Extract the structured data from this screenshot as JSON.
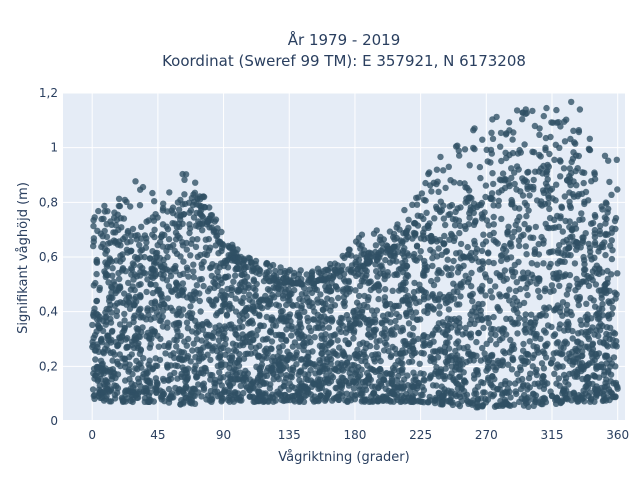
{
  "chart_data": {
    "type": "scatter",
    "title": [
      "År 1979 - 2019",
      "Koordinat (Sweref 99 TM): E 357921, N 6173208"
    ],
    "xlabel": "Vågriktning (grader)",
    "ylabel": "Signifikant våghöjd (m)",
    "xlim": [
      -20,
      365
    ],
    "ylim": [
      0,
      1.2
    ],
    "xticks": [
      0,
      45,
      90,
      135,
      180,
      225,
      270,
      315,
      360
    ],
    "xtick_labels": [
      "0",
      "45",
      "90",
      "135",
      "180",
      "225",
      "270",
      "315",
      "360"
    ],
    "yticks": [
      0,
      0.2,
      0.4,
      0.6,
      0.8,
      1,
      1.2
    ],
    "ytick_labels": [
      "0",
      "0,2",
      "0,4",
      "0,6",
      "0,8",
      "1",
      "1,2"
    ],
    "grid": true,
    "marker_color": "#2f5064",
    "envelope": {
      "x": [
        0,
        15,
        30,
        45,
        60,
        70,
        80,
        90,
        105,
        120,
        135,
        150,
        165,
        180,
        195,
        210,
        225,
        240,
        255,
        270,
        285,
        300,
        315,
        330,
        345,
        360
      ],
      "y_min": [
        0.08,
        0.07,
        0.07,
        0.07,
        0.06,
        0.06,
        0.07,
        0.07,
        0.07,
        0.07,
        0.07,
        0.07,
        0.07,
        0.07,
        0.07,
        0.07,
        0.07,
        0.06,
        0.05,
        0.05,
        0.05,
        0.05,
        0.06,
        0.07,
        0.07,
        0.08
      ],
      "y_core": [
        0.62,
        0.66,
        0.64,
        0.66,
        0.74,
        0.78,
        0.72,
        0.62,
        0.56,
        0.52,
        0.5,
        0.5,
        0.52,
        0.55,
        0.6,
        0.64,
        0.7,
        0.74,
        0.76,
        0.8,
        0.86,
        0.9,
        0.92,
        0.86,
        0.72,
        0.58
      ],
      "y_max": [
        0.78,
        0.8,
        0.9,
        0.86,
        0.92,
        0.88,
        0.8,
        0.68,
        0.6,
        0.58,
        0.56,
        0.55,
        0.58,
        0.68,
        0.7,
        0.76,
        0.9,
        0.98,
        1.06,
        1.12,
        1.16,
        1.14,
        1.15,
        1.18,
        1.1,
        0.96
      ]
    }
  }
}
